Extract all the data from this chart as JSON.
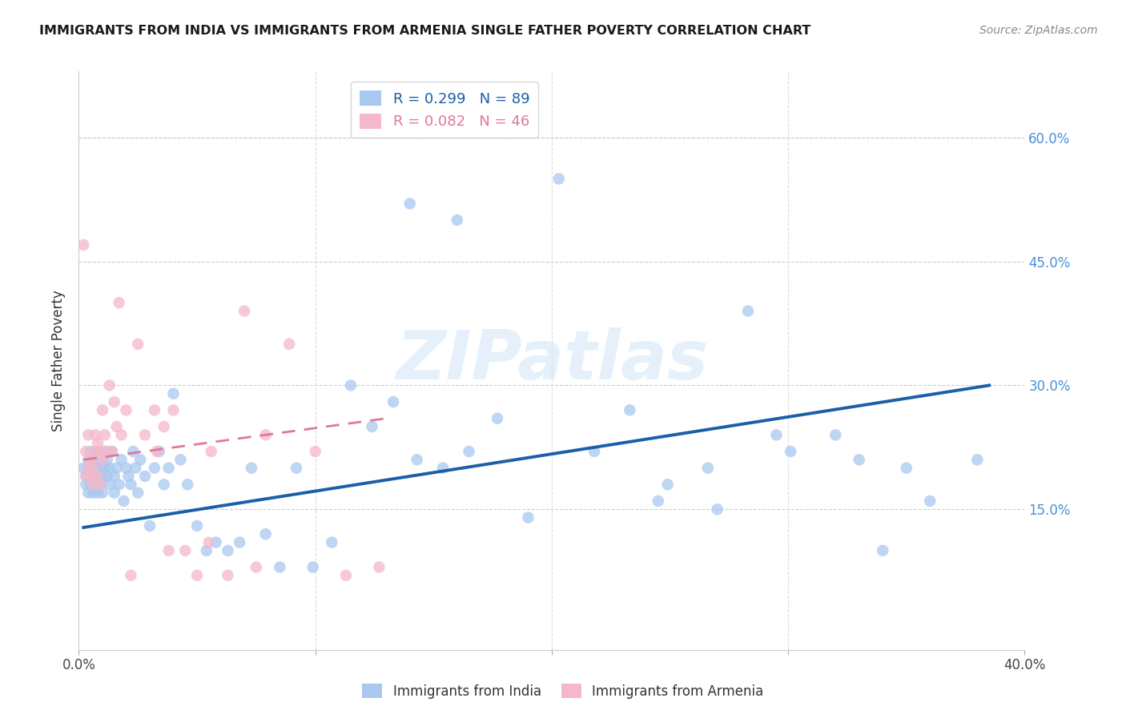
{
  "title": "IMMIGRANTS FROM INDIA VS IMMIGRANTS FROM ARMENIA SINGLE FATHER POVERTY CORRELATION CHART",
  "source": "Source: ZipAtlas.com",
  "ylabel": "Single Father Poverty",
  "ytick_labels": [
    "15.0%",
    "30.0%",
    "45.0%",
    "60.0%"
  ],
  "ytick_values": [
    0.15,
    0.3,
    0.45,
    0.6
  ],
  "xlim": [
    0.0,
    0.4
  ],
  "ylim": [
    -0.02,
    0.68
  ],
  "india_R": 0.299,
  "india_N": 89,
  "armenia_R": 0.082,
  "armenia_N": 46,
  "india_color": "#a8c8f0",
  "armenia_color": "#f5b8cb",
  "india_line_color": "#1a5fa8",
  "armenia_line_color": "#e07898",
  "watermark_zip": "ZIP",
  "watermark_atlas": "atlas",
  "india_scatter_x": [
    0.002,
    0.003,
    0.003,
    0.004,
    0.004,
    0.004,
    0.005,
    0.005,
    0.005,
    0.006,
    0.006,
    0.006,
    0.007,
    0.007,
    0.007,
    0.008,
    0.008,
    0.008,
    0.009,
    0.009,
    0.01,
    0.01,
    0.01,
    0.011,
    0.011,
    0.012,
    0.012,
    0.013,
    0.013,
    0.014,
    0.015,
    0.015,
    0.016,
    0.017,
    0.018,
    0.019,
    0.02,
    0.021,
    0.022,
    0.023,
    0.024,
    0.025,
    0.026,
    0.028,
    0.03,
    0.032,
    0.034,
    0.036,
    0.038,
    0.04,
    0.043,
    0.046,
    0.05,
    0.054,
    0.058,
    0.063,
    0.068,
    0.073,
    0.079,
    0.085,
    0.092,
    0.099,
    0.107,
    0.115,
    0.124,
    0.133,
    0.143,
    0.154,
    0.165,
    0.177,
    0.19,
    0.203,
    0.218,
    0.233,
    0.249,
    0.266,
    0.283,
    0.301,
    0.32,
    0.34,
    0.36,
    0.33,
    0.35,
    0.295,
    0.27,
    0.245,
    0.38,
    0.16,
    0.14
  ],
  "india_scatter_y": [
    0.2,
    0.19,
    0.18,
    0.21,
    0.17,
    0.2,
    0.22,
    0.18,
    0.19,
    0.2,
    0.17,
    0.21,
    0.19,
    0.18,
    0.2,
    0.21,
    0.17,
    0.22,
    0.2,
    0.18,
    0.21,
    0.19,
    0.17,
    0.2,
    0.22,
    0.19,
    0.21,
    0.18,
    0.2,
    0.22,
    0.17,
    0.19,
    0.2,
    0.18,
    0.21,
    0.16,
    0.2,
    0.19,
    0.18,
    0.22,
    0.2,
    0.17,
    0.21,
    0.19,
    0.13,
    0.2,
    0.22,
    0.18,
    0.2,
    0.29,
    0.21,
    0.18,
    0.13,
    0.1,
    0.11,
    0.1,
    0.11,
    0.2,
    0.12,
    0.08,
    0.2,
    0.08,
    0.11,
    0.3,
    0.25,
    0.28,
    0.21,
    0.2,
    0.22,
    0.26,
    0.14,
    0.55,
    0.22,
    0.27,
    0.18,
    0.2,
    0.39,
    0.22,
    0.24,
    0.1,
    0.16,
    0.21,
    0.2,
    0.24,
    0.15,
    0.16,
    0.21,
    0.5,
    0.52
  ],
  "armenia_scatter_x": [
    0.002,
    0.003,
    0.003,
    0.004,
    0.004,
    0.005,
    0.005,
    0.006,
    0.006,
    0.007,
    0.007,
    0.008,
    0.008,
    0.009,
    0.009,
    0.01,
    0.01,
    0.011,
    0.012,
    0.013,
    0.014,
    0.015,
    0.016,
    0.017,
    0.018,
    0.02,
    0.022,
    0.025,
    0.028,
    0.032,
    0.036,
    0.04,
    0.045,
    0.05,
    0.056,
    0.063,
    0.07,
    0.079,
    0.089,
    0.1,
    0.113,
    0.127,
    0.033,
    0.038,
    0.055,
    0.075
  ],
  "armenia_scatter_y": [
    0.47,
    0.22,
    0.19,
    0.24,
    0.2,
    0.21,
    0.19,
    0.2,
    0.18,
    0.22,
    0.24,
    0.23,
    0.19,
    0.22,
    0.18,
    0.27,
    0.21,
    0.24,
    0.22,
    0.3,
    0.22,
    0.28,
    0.25,
    0.4,
    0.24,
    0.27,
    0.07,
    0.35,
    0.24,
    0.27,
    0.25,
    0.27,
    0.1,
    0.07,
    0.22,
    0.07,
    0.39,
    0.24,
    0.35,
    0.22,
    0.07,
    0.08,
    0.22,
    0.1,
    0.11,
    0.08
  ],
  "india_line_x": [
    0.002,
    0.385
  ],
  "india_line_y": [
    0.128,
    0.3
  ],
  "armenia_line_x": [
    0.002,
    0.13
  ],
  "armenia_line_y": [
    0.21,
    0.26
  ]
}
